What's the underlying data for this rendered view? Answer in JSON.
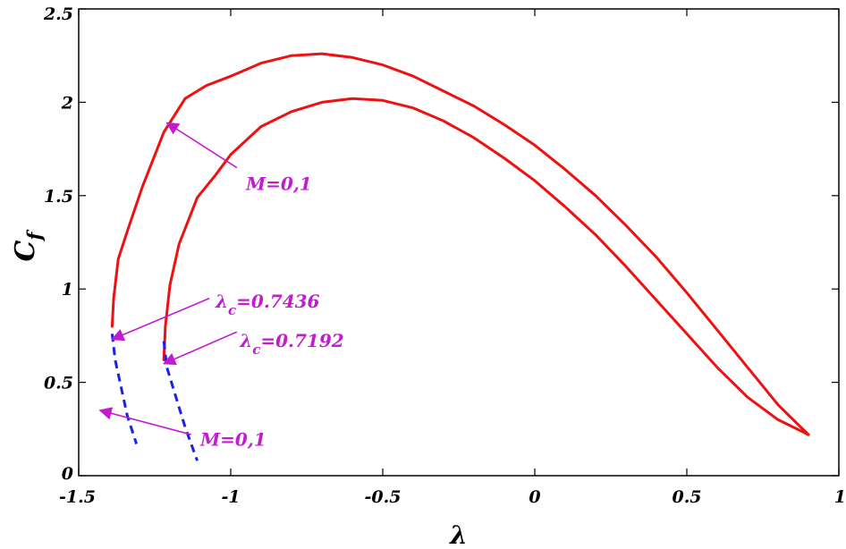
{
  "chart_data": {
    "type": "line",
    "title": "",
    "xlabel": "λ",
    "ylabel": {
      "main": "C",
      "sub": "f"
    },
    "xlim": [
      -1.5,
      1
    ],
    "ylim": [
      0,
      2.5
    ],
    "xticks": [
      -1.5,
      -1,
      -0.5,
      0,
      0.5,
      1
    ],
    "xtick_labels": [
      "-1.5",
      "-1",
      "-0.5",
      "0",
      "0.5",
      "1"
    ],
    "yticks": [
      0,
      0.5,
      1,
      1.5,
      2,
      2.5
    ],
    "ytick_labels": [
      "0",
      "0.5",
      "1",
      "1.5",
      "2",
      "2.5"
    ],
    "grid": false,
    "colors": {
      "solid": "#ee1111",
      "dashed": "#1a22e6",
      "annotation": "#c21bd0",
      "axis": "#000000"
    },
    "series": [
      {
        "style": "solid",
        "color": "#ee1111",
        "x": [
          -1.39,
          -1.385,
          -1.37,
          -1.34,
          -1.29,
          -1.22,
          -1.15,
          -1.08,
          -1.0,
          -0.9,
          -0.8,
          -0.7,
          -0.6,
          -0.5,
          -0.4,
          -0.3,
          -0.2,
          -0.1,
          0.0,
          0.1,
          0.2,
          0.3,
          0.4,
          0.5,
          0.6,
          0.7,
          0.8,
          0.9
        ],
        "y": [
          0.8,
          0.95,
          1.16,
          1.31,
          1.55,
          1.84,
          2.02,
          2.09,
          2.14,
          2.21,
          2.25,
          2.26,
          2.24,
          2.2,
          2.14,
          2.06,
          1.98,
          1.88,
          1.77,
          1.64,
          1.5,
          1.34,
          1.17,
          0.98,
          0.78,
          0.58,
          0.38,
          0.22
        ]
      },
      {
        "style": "solid",
        "color": "#ee1111",
        "x": [
          -1.22,
          -1.215,
          -1.2,
          -1.17,
          -1.11,
          -1.05,
          -1.0,
          -0.9,
          -0.8,
          -0.7,
          -0.6,
          -0.5,
          -0.4,
          -0.3,
          -0.2,
          -0.1,
          0.0,
          0.1,
          0.2,
          0.3,
          0.4,
          0.5,
          0.6,
          0.7,
          0.8,
          0.9
        ],
        "y": [
          0.62,
          0.8,
          1.02,
          1.24,
          1.49,
          1.61,
          1.72,
          1.87,
          1.95,
          2.0,
          2.02,
          2.01,
          1.97,
          1.9,
          1.81,
          1.7,
          1.58,
          1.44,
          1.29,
          1.12,
          0.94,
          0.76,
          0.58,
          0.42,
          0.3,
          0.22
        ]
      },
      {
        "style": "dashed",
        "color": "#1a22e6",
        "x": [
          -1.39,
          -1.38,
          -1.36,
          -1.34,
          -1.31
        ],
        "y": [
          0.76,
          0.62,
          0.47,
          0.32,
          0.17
        ]
      },
      {
        "style": "dashed",
        "color": "#1a22e6",
        "x": [
          -1.22,
          -1.21,
          -1.18,
          -1.15,
          -1.11
        ],
        "y": [
          0.72,
          0.58,
          0.42,
          0.26,
          0.08
        ]
      }
    ],
    "annotations": [
      {
        "label_main": "M=0,1",
        "label_sub": "",
        "label_tail": "",
        "text_x": -0.95,
        "text_y": 1.53,
        "arrow_from": [
          -0.98,
          1.65
        ],
        "arrow_to": [
          -1.21,
          1.89
        ]
      },
      {
        "label_main": "λ",
        "label_sub": "c",
        "label_tail": "=0.7436",
        "text_x": -1.05,
        "text_y": 0.9,
        "arrow_from": [
          -1.07,
          0.95
        ],
        "arrow_to": [
          -1.39,
          0.73
        ]
      },
      {
        "label_main": "λ",
        "label_sub": "c",
        "label_tail": "=0.7192",
        "text_x": -0.97,
        "text_y": 0.69,
        "arrow_from": [
          -0.98,
          0.77
        ],
        "arrow_to": [
          -1.22,
          0.6
        ]
      },
      {
        "label_main": "M=0,1",
        "label_sub": "",
        "label_tail": "",
        "text_x": -1.1,
        "text_y": 0.16,
        "arrow_from": [
          -1.13,
          0.22
        ],
        "arrow_to": [
          -1.43,
          0.35
        ]
      }
    ]
  }
}
